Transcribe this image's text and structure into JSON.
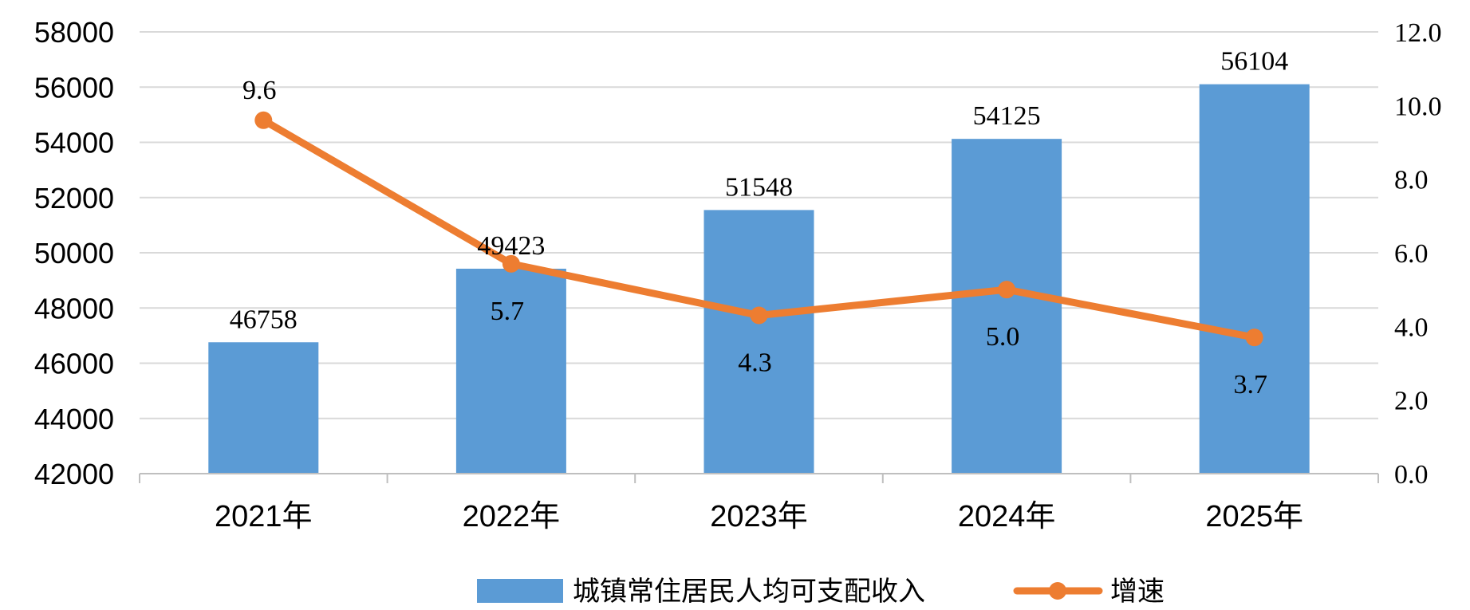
{
  "chart_data": {
    "type": "bar",
    "categories": [
      "2021年",
      "2022年",
      "2023年",
      "2024年",
      "2025年"
    ],
    "series": [
      {
        "name": "城镇常住居民人均可支配收入",
        "type": "bar",
        "axis": "left",
        "values": [
          46758,
          49423,
          51548,
          54125,
          56104
        ]
      },
      {
        "name": "增速",
        "type": "line",
        "axis": "right",
        "values": [
          9.6,
          5.7,
          4.3,
          5.0,
          3.7
        ]
      }
    ],
    "y_left": {
      "min": 42000,
      "max": 58000,
      "ticks": [
        "58000",
        "56000",
        "54000",
        "52000",
        "50000",
        "48000",
        "46000",
        "44000",
        "42000"
      ]
    },
    "y_right": {
      "min": 0,
      "max": 12,
      "ticks": [
        "12.0",
        "10.0",
        "8.0",
        "6.0",
        "4.0",
        "2.0",
        "0.0"
      ]
    },
    "bar_labels": [
      "46758",
      "49423",
      "51548",
      "54125",
      "56104"
    ],
    "line_labels": [
      "9.6",
      "5.7",
      "4.3",
      "5.0",
      "3.7"
    ],
    "grid": true,
    "legend_position": "bottom",
    "colors": {
      "bar": "#5b9bd5",
      "line": "#ed7d31",
      "grid": "#d9d9d9"
    }
  }
}
